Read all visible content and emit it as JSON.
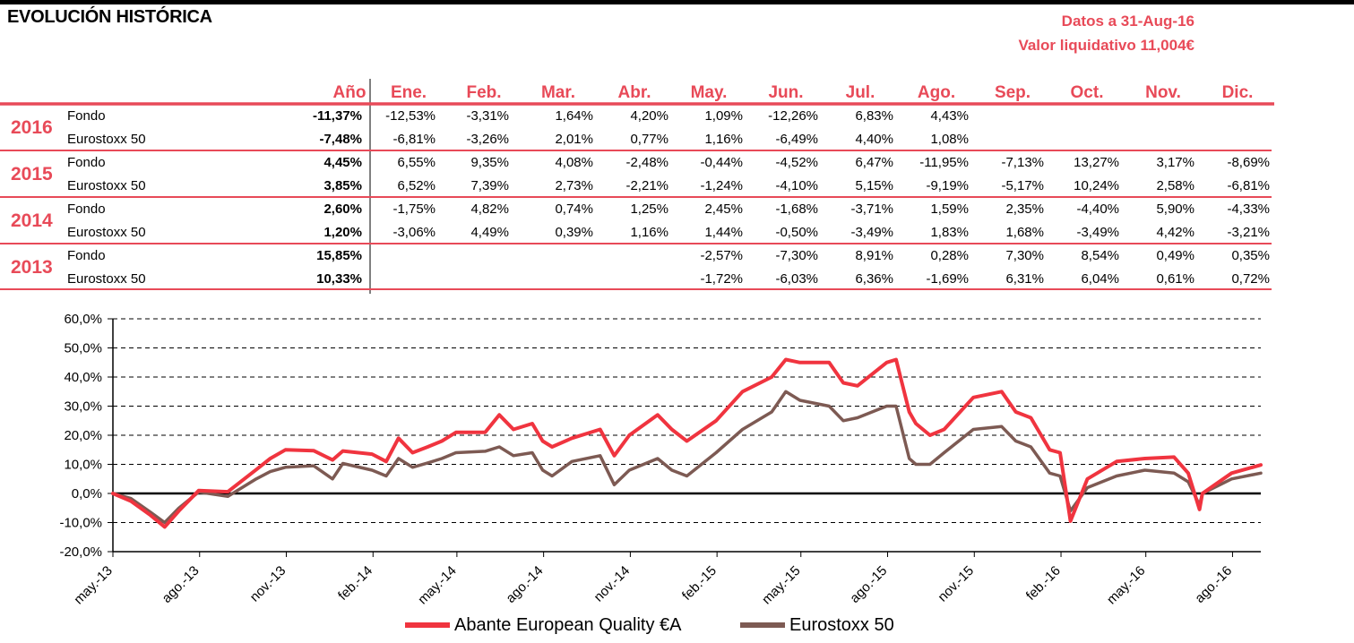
{
  "header": {
    "title": "EVOLUCIÓN HISTÓRICA",
    "date_line": "Datos a 31-Aug-16",
    "nav_line": "Valor liquidativo 11,004€"
  },
  "table": {
    "year_header": "Año",
    "months": [
      "Ene.",
      "Feb.",
      "Mar.",
      "Abr.",
      "May.",
      "Jun.",
      "Jul.",
      "Ago.",
      "Sep.",
      "Oct.",
      "Nov.",
      "Dic."
    ],
    "years": [
      {
        "year": "2016",
        "rows": [
          {
            "label": "Fondo",
            "annual": "-11,37%",
            "monthly": [
              "-12,53%",
              "-3,31%",
              "1,64%",
              "4,20%",
              "1,09%",
              "-12,26%",
              "6,83%",
              "4,43%",
              "",
              "",
              "",
              ""
            ]
          },
          {
            "label": "Eurostoxx 50",
            "annual": "-7,48%",
            "monthly": [
              "-6,81%",
              "-3,26%",
              "2,01%",
              "0,77%",
              "1,16%",
              "-6,49%",
              "4,40%",
              "1,08%",
              "",
              "",
              "",
              ""
            ]
          }
        ]
      },
      {
        "year": "2015",
        "rows": [
          {
            "label": "Fondo",
            "annual": "4,45%",
            "monthly": [
              "6,55%",
              "9,35%",
              "4,08%",
              "-2,48%",
              "-0,44%",
              "-4,52%",
              "6,47%",
              "-11,95%",
              "-7,13%",
              "13,27%",
              "3,17%",
              "-8,69%"
            ]
          },
          {
            "label": "Eurostoxx 50",
            "annual": "3,85%",
            "monthly": [
              "6,52%",
              "7,39%",
              "2,73%",
              "-2,21%",
              "-1,24%",
              "-4,10%",
              "5,15%",
              "-9,19%",
              "-5,17%",
              "10,24%",
              "2,58%",
              "-6,81%"
            ]
          }
        ]
      },
      {
        "year": "2014",
        "rows": [
          {
            "label": "Fondo",
            "annual": "2,60%",
            "monthly": [
              "-1,75%",
              "4,82%",
              "0,74%",
              "1,25%",
              "2,45%",
              "-1,68%",
              "-3,71%",
              "1,59%",
              "2,35%",
              "-4,40%",
              "5,90%",
              "-4,33%"
            ]
          },
          {
            "label": "Eurostoxx 50",
            "annual": "1,20%",
            "monthly": [
              "-3,06%",
              "4,49%",
              "0,39%",
              "1,16%",
              "1,44%",
              "-0,50%",
              "-3,49%",
              "1,83%",
              "1,68%",
              "-3,49%",
              "4,42%",
              "-3,21%"
            ]
          }
        ]
      },
      {
        "year": "2013",
        "rows": [
          {
            "label": "Fondo",
            "annual": "15,85%",
            "monthly": [
              "",
              "",
              "",
              "",
              "-2,57%",
              "-7,30%",
              "8,91%",
              "0,28%",
              "7,30%",
              "8,54%",
              "0,49%",
              "0,35%"
            ]
          },
          {
            "label": "Eurostoxx 50",
            "annual": "10,33%",
            "monthly": [
              "",
              "",
              "",
              "",
              "-1,72%",
              "-6,03%",
              "6,36%",
              "-1,69%",
              "6,31%",
              "6,04%",
              "0,61%",
              "0,72%"
            ]
          }
        ]
      }
    ]
  },
  "chart_data": {
    "type": "line",
    "title": "",
    "xlabel": "",
    "ylabel": "",
    "ylim": [
      -20,
      60
    ],
    "y_ticks": [
      "60,0%",
      "50,0%",
      "40,0%",
      "30,0%",
      "20,0%",
      "10,0%",
      "0,0%",
      "-10,0%",
      "-20,0%"
    ],
    "x_range": [
      "2013-05-01",
      "2016-08-31"
    ],
    "x_tick_dates": [
      "2013-05-01",
      "2013-08-01",
      "2013-11-01",
      "2014-02-01",
      "2014-05-01",
      "2014-08-01",
      "2014-11-01",
      "2015-02-01",
      "2015-05-01",
      "2015-08-01",
      "2015-11-01",
      "2016-02-01",
      "2016-05-01",
      "2016-08-01"
    ],
    "x_tick_labels": [
      "may.-13",
      "ago.-13",
      "nov.-13",
      "feb.-14",
      "may.-14",
      "ago.-14",
      "nov.-14",
      "feb.-15",
      "may.-15",
      "ago.-15",
      "nov.-15",
      "feb.-16",
      "may.-16",
      "ago.-16"
    ],
    "grid": true,
    "legend_position": "bottom",
    "series": [
      {
        "name": "Abante European Quality €A",
        "color": "#f0343f",
        "dates": [
          "2013-05-01",
          "2013-05-20",
          "2013-06-10",
          "2013-06-25",
          "2013-07-10",
          "2013-07-31",
          "2013-08-31",
          "2013-09-30",
          "2013-10-15",
          "2013-10-31",
          "2013-11-30",
          "2013-12-20",
          "2013-12-31",
          "2014-01-31",
          "2014-02-15",
          "2014-02-28",
          "2014-03-15",
          "2014-03-31",
          "2014-04-15",
          "2014-04-30",
          "2014-05-31",
          "2014-06-15",
          "2014-06-30",
          "2014-07-20",
          "2014-07-31",
          "2014-08-10",
          "2014-08-31",
          "2014-09-30",
          "2014-10-15",
          "2014-10-31",
          "2014-11-30",
          "2014-12-15",
          "2014-12-31",
          "2015-01-31",
          "2015-02-28",
          "2015-03-31",
          "2015-04-15",
          "2015-04-30",
          "2015-05-31",
          "2015-06-15",
          "2015-06-30",
          "2015-07-31",
          "2015-08-10",
          "2015-08-24",
          "2015-08-31",
          "2015-09-15",
          "2015-09-30",
          "2015-10-31",
          "2015-11-30",
          "2015-12-15",
          "2015-12-31",
          "2016-01-20",
          "2016-01-31",
          "2016-02-11",
          "2016-02-29",
          "2016-03-31",
          "2016-04-30",
          "2016-05-31",
          "2016-06-15",
          "2016-06-27",
          "2016-06-30",
          "2016-07-31",
          "2016-08-31"
        ],
        "values": [
          0.0,
          -2.6,
          -7.5,
          -11.5,
          -6.0,
          1.0,
          0.6,
          8.2,
          12.0,
          15.0,
          14.7,
          11.5,
          14.6,
          13.5,
          11.0,
          19.0,
          14.0,
          16.0,
          18.0,
          21.0,
          21.0,
          27.0,
          22.0,
          24.0,
          18.0,
          16.0,
          19.0,
          22.0,
          13.0,
          20.0,
          27.0,
          22.0,
          18.0,
          25.0,
          35.0,
          40.0,
          46.0,
          45.0,
          45.0,
          38.0,
          37.0,
          45.0,
          46.0,
          28.0,
          24.0,
          20.0,
          22.0,
          33.0,
          35.0,
          28.0,
          26.0,
          15.0,
          14.0,
          -9.5,
          5.0,
          11.0,
          12.0,
          12.5,
          7.0,
          -5.5,
          0.0,
          7.0,
          9.8
        ]
      },
      {
        "name": "Eurostoxx 50",
        "color": "#7d5a53",
        "dates": [
          "2013-05-01",
          "2013-05-20",
          "2013-06-10",
          "2013-06-25",
          "2013-07-10",
          "2013-07-31",
          "2013-08-31",
          "2013-09-30",
          "2013-10-15",
          "2013-10-31",
          "2013-11-30",
          "2013-12-20",
          "2013-12-31",
          "2014-01-31",
          "2014-02-15",
          "2014-02-28",
          "2014-03-15",
          "2014-03-31",
          "2014-04-15",
          "2014-04-30",
          "2014-05-31",
          "2014-06-15",
          "2014-06-30",
          "2014-07-20",
          "2014-07-31",
          "2014-08-10",
          "2014-08-31",
          "2014-09-30",
          "2014-10-15",
          "2014-10-31",
          "2014-11-30",
          "2014-12-15",
          "2014-12-31",
          "2015-01-31",
          "2015-02-28",
          "2015-03-31",
          "2015-04-15",
          "2015-04-30",
          "2015-05-31",
          "2015-06-15",
          "2015-06-30",
          "2015-07-31",
          "2015-08-10",
          "2015-08-24",
          "2015-08-31",
          "2015-09-15",
          "2015-09-30",
          "2015-10-31",
          "2015-11-30",
          "2015-12-15",
          "2015-12-31",
          "2016-01-20",
          "2016-01-31",
          "2016-02-11",
          "2016-02-29",
          "2016-03-31",
          "2016-04-30",
          "2016-05-31",
          "2016-06-15",
          "2016-06-27",
          "2016-06-30",
          "2016-07-31",
          "2016-08-31"
        ],
        "values": [
          0.0,
          -1.7,
          -6.5,
          -10.0,
          -5.0,
          0.5,
          -1.0,
          5.0,
          7.5,
          9.0,
          9.5,
          5.0,
          10.3,
          8.0,
          6.0,
          12.0,
          9.0,
          10.5,
          12.0,
          14.0,
          14.5,
          16.0,
          13.0,
          14.0,
          8.0,
          6.0,
          11.0,
          13.0,
          3.0,
          8.0,
          12.0,
          8.0,
          6.0,
          14.0,
          22.0,
          28.0,
          35.0,
          32.0,
          30.0,
          25.0,
          26.0,
          30.0,
          30.0,
          12.0,
          10.0,
          10.0,
          14.0,
          22.0,
          23.0,
          18.0,
          16.0,
          7.0,
          6.0,
          -6.0,
          2.0,
          6.0,
          8.0,
          7.0,
          4.0,
          -4.0,
          0.0,
          5.0,
          7.0
        ]
      }
    ]
  }
}
